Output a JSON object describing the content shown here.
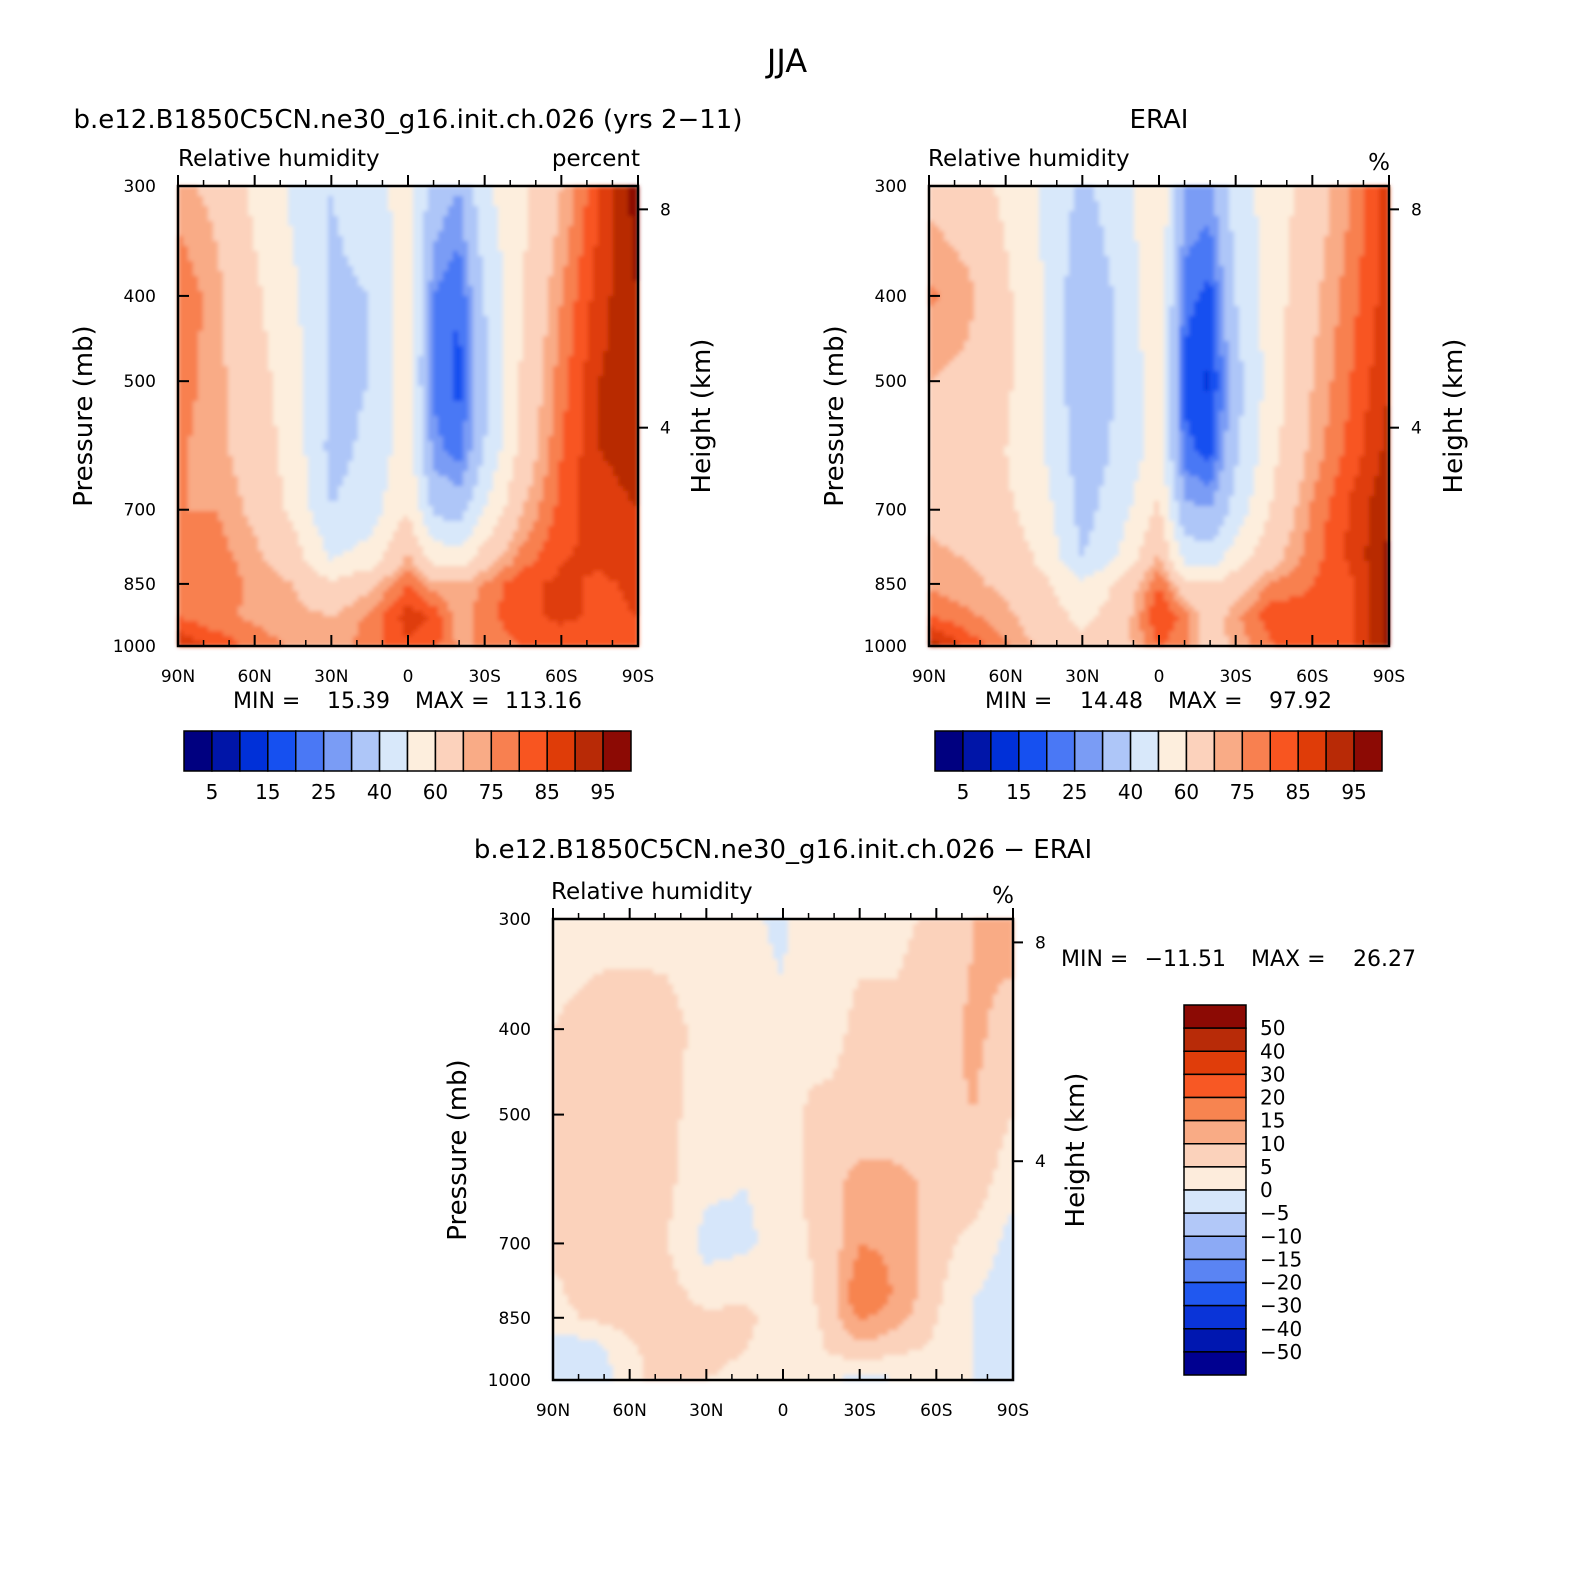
{
  "figure": {
    "title": "JJA"
  },
  "colors": {
    "abs_levels": [
      "#000080",
      "#0015a8",
      "#0030d8",
      "#1650f0",
      "#4a78f5",
      "#7a9cf5",
      "#aec6f8",
      "#d8e8fa",
      "#fdeedd",
      "#fcd2bc",
      "#f9ab86",
      "#f88050",
      "#f85520",
      "#df3c08",
      "#b82a06",
      "#8c0a04"
    ],
    "diff_levels": [
      "#000090",
      "#0017b0",
      "#0a34d8",
      "#2058f0",
      "#5a84f3",
      "#8caaf5",
      "#b2c8f8",
      "#d6e6fa",
      "#fdecdc",
      "#fbd2bb",
      "#f9ab85",
      "#f78450",
      "#f85824",
      "#e03d0a",
      "#b82b08",
      "#8c0a04"
    ]
  },
  "chart_data": [
    {
      "type": "heatmap",
      "name": "model",
      "title": "b.e12.B1850C5CN.ne30_g16.init.ch.026 (yrs 2−11)",
      "variable": "Relative humidity",
      "units": "percent",
      "xlabel": "",
      "ylabel": "Pressure (mb)",
      "y2label": "Height (km)",
      "x_ticks": [
        "90N",
        "60N",
        "30N",
        "0",
        "30S",
        "60S",
        "90S"
      ],
      "x_range": [
        90,
        -90
      ],
      "y_ticks": [
        300,
        400,
        500,
        700,
        850,
        1000
      ],
      "y_range": [
        300,
        1000
      ],
      "y_scale": "log",
      "y2_ticks": [
        8,
        4
      ],
      "min": 15.39,
      "max": 113.16,
      "min_label": "MIN =",
      "max_label": "MAX =",
      "min_text": "15.39",
      "max_text": "113.16",
      "colorbar": {
        "orientation": "horizontal",
        "labels": [
          "5",
          "15",
          "25",
          "40",
          "60",
          "75",
          "85",
          "95"
        ]
      },
      "approx_field": {
        "lat": [
          90,
          75,
          60,
          45,
          30,
          15,
          0,
          -10,
          -20,
          -30,
          -45,
          -60,
          -75,
          -90
        ],
        "p": [
          300,
          400,
          500,
          600,
          700,
          800,
          850,
          925,
          1000
        ],
        "values": [
          [
            72,
            68,
            58,
            48,
            40,
            45,
            55,
            35,
            30,
            48,
            58,
            70,
            85,
            98
          ],
          [
            80,
            72,
            62,
            52,
            38,
            40,
            55,
            25,
            20,
            40,
            60,
            75,
            88,
            95
          ],
          [
            78,
            72,
            64,
            55,
            38,
            40,
            55,
            24,
            18,
            38,
            62,
            78,
            90,
            94
          ],
          [
            76,
            72,
            66,
            56,
            37,
            42,
            56,
            27,
            22,
            40,
            64,
            80,
            90,
            92
          ],
          [
            75,
            75,
            68,
            58,
            40,
            45,
            60,
            38,
            35,
            50,
            70,
            82,
            88,
            90
          ],
          [
            76,
            78,
            72,
            65,
            50,
            55,
            72,
            58,
            55,
            66,
            78,
            85,
            86,
            88
          ],
          [
            78,
            78,
            74,
            70,
            62,
            68,
            80,
            72,
            70,
            76,
            84,
            86,
            84,
            86
          ],
          [
            80,
            76,
            74,
            72,
            70,
            76,
            88,
            84,
            72,
            78,
            84,
            86,
            84,
            85
          ],
          [
            90,
            84,
            78,
            74,
            72,
            78,
            84,
            82,
            74,
            76,
            80,
            82,
            84,
            85
          ]
        ]
      }
    },
    {
      "type": "heatmap",
      "name": "obs",
      "title": "ERAI",
      "variable": "Relative humidity",
      "units": "%",
      "xlabel": "",
      "ylabel": "Pressure (mb)",
      "y2label": "Height (km)",
      "x_ticks": [
        "90N",
        "60N",
        "30N",
        "0",
        "30S",
        "60S",
        "90S"
      ],
      "x_range": [
        90,
        -90
      ],
      "y_ticks": [
        300,
        400,
        500,
        700,
        850,
        1000
      ],
      "y_range": [
        300,
        1000
      ],
      "y_scale": "log",
      "y2_ticks": [
        8,
        4
      ],
      "min": 14.48,
      "max": 97.92,
      "min_label": "MIN =",
      "max_label": "MAX =",
      "min_text": "14.48",
      "max_text": "97.92",
      "colorbar": {
        "orientation": "horizontal",
        "labels": [
          "5",
          "15",
          "25",
          "40",
          "60",
          "75",
          "85",
          "95"
        ]
      },
      "approx_field": {
        "lat": [
          90,
          75,
          60,
          45,
          30,
          15,
          0,
          -10,
          -20,
          -30,
          -45,
          -60,
          -75,
          -90
        ],
        "p": [
          300,
          400,
          500,
          600,
          700,
          800,
          850,
          925,
          1000
        ],
        "values": [
          [
            68,
            65,
            58,
            48,
            38,
            45,
            60,
            30,
            28,
            45,
            55,
            65,
            75,
            88
          ],
          [
            76,
            72,
            62,
            50,
            32,
            42,
            58,
            22,
            18,
            40,
            56,
            68,
            78,
            88
          ],
          [
            70,
            68,
            62,
            50,
            32,
            42,
            56,
            18,
            14,
            36,
            56,
            70,
            80,
            90
          ],
          [
            66,
            64,
            60,
            50,
            35,
            42,
            55,
            22,
            18,
            38,
            58,
            72,
            82,
            92
          ],
          [
            68,
            66,
            62,
            54,
            36,
            46,
            62,
            32,
            30,
            44,
            62,
            76,
            86,
            95
          ],
          [
            72,
            70,
            66,
            58,
            40,
            52,
            72,
            48,
            45,
            56,
            68,
            78,
            86,
            96
          ],
          [
            74,
            72,
            68,
            62,
            52,
            62,
            80,
            64,
            60,
            66,
            76,
            80,
            84,
            96
          ],
          [
            80,
            76,
            72,
            64,
            58,
            64,
            86,
            78,
            64,
            74,
            84,
            82,
            84,
            96
          ],
          [
            94,
            84,
            76,
            68,
            62,
            66,
            80,
            76,
            66,
            72,
            80,
            82,
            84,
            96
          ]
        ]
      }
    },
    {
      "type": "heatmap",
      "name": "difference",
      "title": "b.e12.B1850C5CN.ne30_g16.init.ch.026 − ERAI",
      "variable": "Relative humidity",
      "units": "%",
      "xlabel": "",
      "ylabel": "Pressure (mb)",
      "y2label": "Height (km)",
      "x_ticks": [
        "90N",
        "60N",
        "30N",
        "0",
        "30S",
        "60S",
        "90S"
      ],
      "x_range": [
        90,
        -90
      ],
      "y_ticks": [
        300,
        400,
        500,
        700,
        850,
        1000
      ],
      "y_range": [
        300,
        1000
      ],
      "y_scale": "log",
      "y2_ticks": [
        8,
        4
      ],
      "min": -11.51,
      "max": 26.27,
      "min_label": "MIN =",
      "max_label": "MAX =",
      "min_text": "−11.51",
      "max_text": "26.27",
      "colorbar": {
        "orientation": "vertical",
        "labels": [
          "50",
          "40",
          "30",
          "20",
          "15",
          "10",
          "5",
          "0",
          "−5",
          "−10",
          "−15",
          "−20",
          "−30",
          "−40",
          "−50"
        ]
      },
      "approx_field": {
        "lat": [
          90,
          75,
          60,
          45,
          30,
          15,
          0,
          -10,
          -20,
          -30,
          -45,
          -60,
          -75,
          -90
        ],
        "p": [
          300,
          400,
          500,
          600,
          700,
          800,
          850,
          925,
          1000
        ],
        "values": [
          [
            4,
            4,
            3,
            4,
            3,
            1,
            -1,
            4,
            4,
            4,
            4,
            6,
            10,
            12
          ],
          [
            5,
            6,
            8,
            6,
            4,
            2,
            1,
            3,
            4,
            6,
            6,
            8,
            11,
            8
          ],
          [
            8,
            8,
            8,
            6,
            3,
            2,
            1,
            6,
            6,
            7,
            8,
            9,
            10,
            5
          ],
          [
            8,
            8,
            8,
            6,
            1,
            0,
            2,
            6,
            9,
            12,
            11,
            9,
            8,
            1
          ],
          [
            6,
            6,
            6,
            5,
            -2,
            -1,
            2,
            5,
            8,
            15,
            14,
            7,
            3,
            -2
          ],
          [
            4,
            7,
            8,
            7,
            3,
            4,
            2,
            4,
            9,
            20,
            14,
            6,
            0,
            -2
          ],
          [
            3,
            6,
            7,
            8,
            6,
            7,
            1,
            3,
            8,
            16,
            12,
            5,
            0,
            -3
          ],
          [
            -4,
            -3,
            4,
            8,
            6,
            5,
            1,
            3,
            6,
            8,
            6,
            4,
            0,
            -3
          ],
          [
            -4,
            -3,
            2,
            10,
            5,
            4,
            1,
            2,
            0,
            -2,
            0,
            0,
            0,
            0
          ]
        ]
      }
    }
  ]
}
